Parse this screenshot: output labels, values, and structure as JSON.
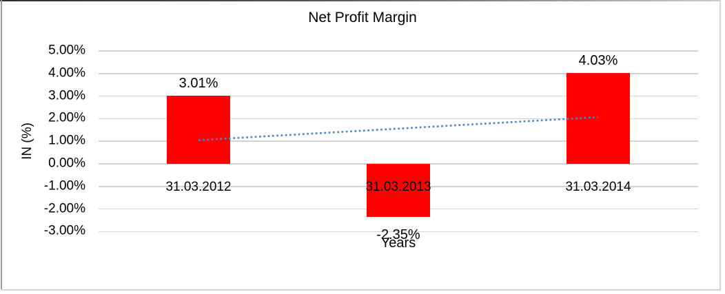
{
  "chart_data": {
    "type": "bar",
    "title": "Net Profit Margin",
    "xlabel": "Years",
    "ylabel": "IN (%)",
    "categories": [
      "31.03.2012",
      "31.03.2013",
      "31.03.2014"
    ],
    "values": [
      3.01,
      -2.35,
      4.03
    ],
    "value_labels": [
      "3.01%",
      "-2.35%",
      "4.03%"
    ],
    "yticks": [
      {
        "value": 5,
        "label": "5.00%"
      },
      {
        "value": 4,
        "label": "4.00%"
      },
      {
        "value": 3,
        "label": "3.00%"
      },
      {
        "value": 2,
        "label": "2.00%"
      },
      {
        "value": 1,
        "label": "1.00%"
      },
      {
        "value": 0,
        "label": "0.00%"
      },
      {
        "value": -1,
        "label": "-1.00%"
      },
      {
        "value": -2,
        "label": "-2.00%"
      },
      {
        "value": -3,
        "label": "-3.00%"
      }
    ],
    "ylim": [
      -3,
      5
    ],
    "grid": true,
    "legend_position": "none",
    "bar_color": "#FF0000",
    "gridline_color": "#d2d2d2",
    "trendline": {
      "kind": "linear",
      "style": "dotted",
      "color": "#4E86C8",
      "start": {
        "category_index": 0,
        "value": 1.05
      },
      "end": {
        "category_index": 2,
        "value": 2.07
      }
    }
  }
}
